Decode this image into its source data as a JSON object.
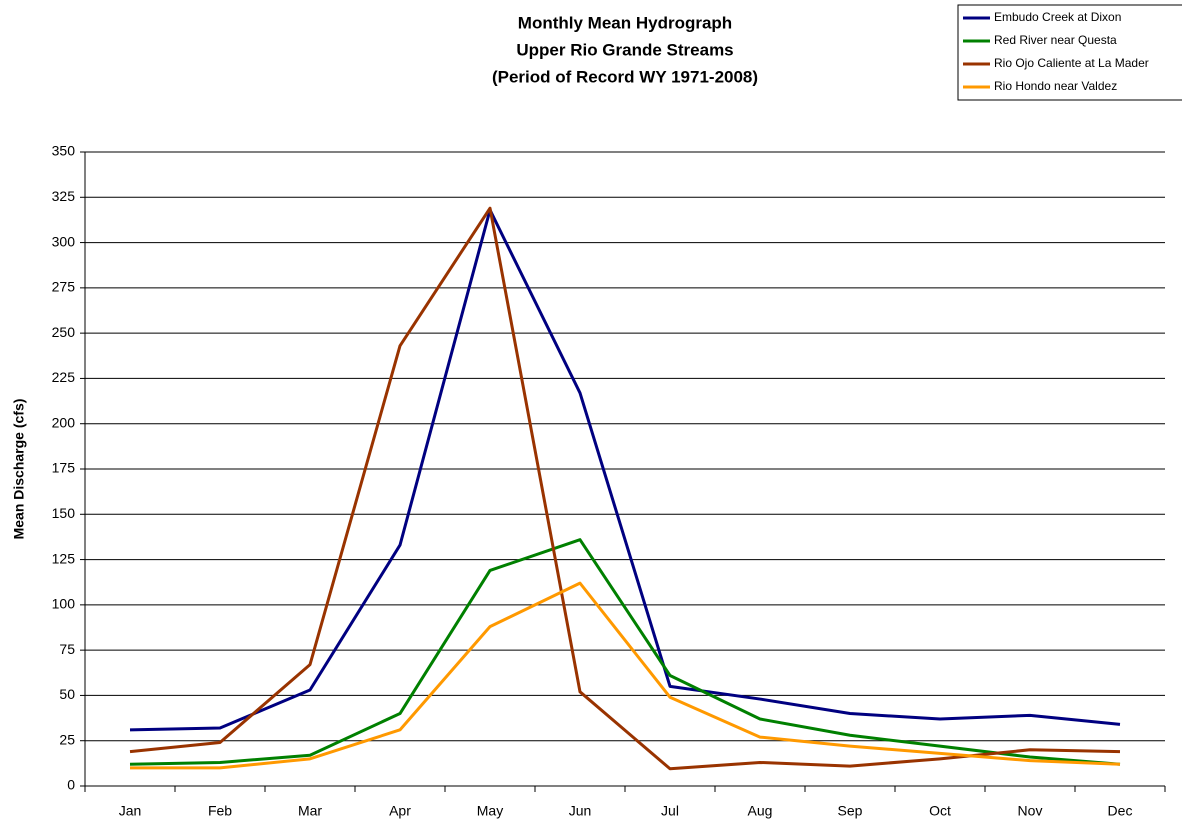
{
  "chart_data": {
    "type": "line",
    "title": [
      "Monthly Mean Hydrograph",
      "Upper Rio Grande Streams",
      "(Period of Record WY 1971-2008)"
    ],
    "y_label": "Mean Discharge (cfs)",
    "categories": [
      "Jan",
      "Feb",
      "Mar",
      "Apr",
      "May",
      "Jun",
      "Jul",
      "Aug",
      "Sep",
      "Oct",
      "Nov",
      "Dec"
    ],
    "series": [
      {
        "name": "Embudo Creek at Dixon",
        "color": "#000080",
        "values": [
          31,
          32,
          53,
          133,
          318,
          217,
          55,
          48,
          40,
          37,
          39,
          34
        ]
      },
      {
        "name": "Red River near Questa",
        "color": "#008000",
        "values": [
          12,
          13,
          17,
          40,
          119,
          136,
          61,
          37,
          28,
          22,
          16,
          12
        ]
      },
      {
        "name": "Rio Ojo Caliente at La Mader",
        "color": "#993300",
        "values": [
          19,
          24,
          67,
          243,
          319,
          52,
          9.5,
          13,
          11,
          15,
          20,
          19
        ]
      },
      {
        "name": "Rio Hondo near Valdez",
        "color": "#FF9900",
        "values": [
          10,
          10,
          15,
          31,
          88,
          112,
          49,
          27,
          22,
          18,
          14,
          12
        ]
      }
    ],
    "ylim": [
      0,
      350
    ],
    "yticks": [
      0,
      25,
      50,
      75,
      100,
      125,
      150,
      175,
      200,
      225,
      250,
      275,
      300,
      325,
      350
    ],
    "grid": true,
    "legend": "top-right"
  }
}
